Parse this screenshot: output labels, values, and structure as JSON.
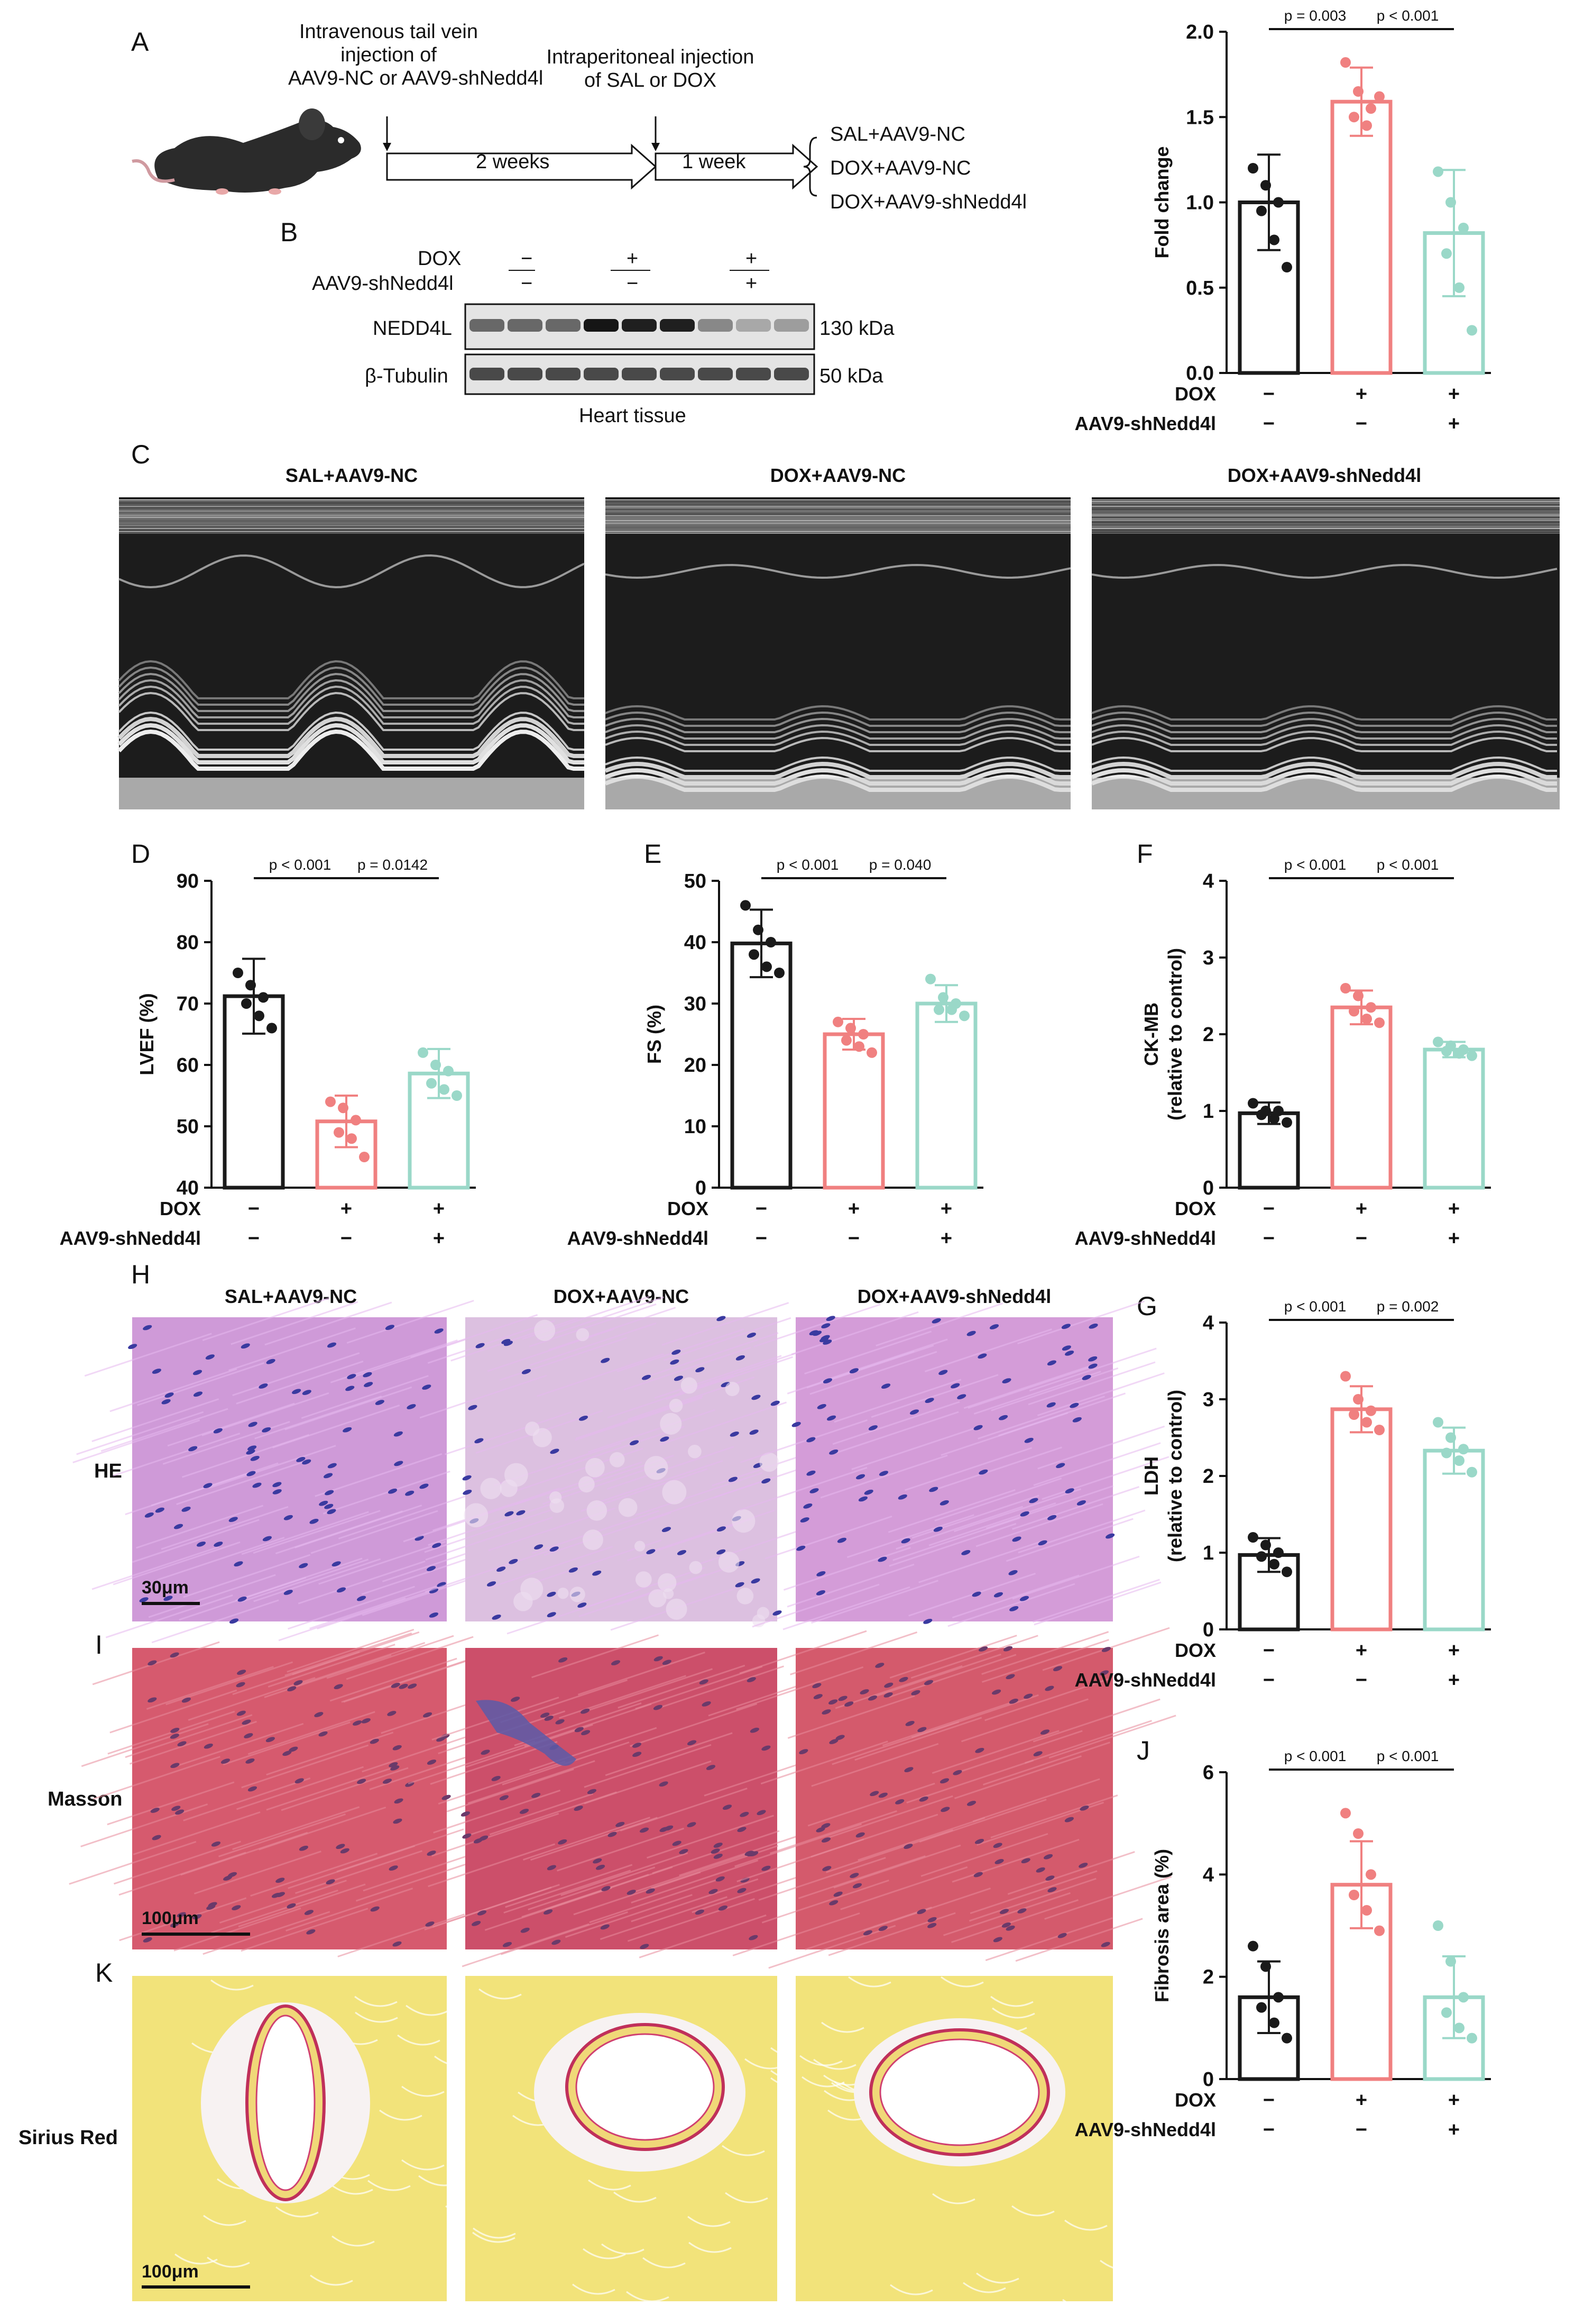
{
  "panel_labels": {
    "A": "A",
    "B": "B",
    "C": "C",
    "D": "D",
    "E": "E",
    "F": "F",
    "G": "G",
    "H": "H",
    "I": "I",
    "J": "J",
    "K": "K"
  },
  "schematic": {
    "injection1": [
      "Intravenous tail vein",
      "injection of",
      "AAV9-NC or AAV9-shNedd4l"
    ],
    "injection2": [
      "Intraperitoneal injection",
      "of SAL or DOX"
    ],
    "arrow1": "2 weeks",
    "arrow2": "1 week",
    "groups": [
      "SAL+AAV9-NC",
      "DOX+AAV9-NC",
      "DOX+AAV9-shNedd4l"
    ]
  },
  "western": {
    "row_labels": [
      "DOX",
      "AAV9-shNedd4l"
    ],
    "signs_dox": [
      "−",
      "+",
      "+"
    ],
    "signs_aav": [
      "−",
      "−",
      "+"
    ],
    "bands": [
      {
        "protein": "NEDD4L",
        "size": "130 kDa",
        "intensity": [
          0.55,
          0.55,
          0.55,
          0.95,
          0.9,
          0.9,
          0.4,
          0.25,
          0.3
        ]
      },
      {
        "protein": "β-Tubulin",
        "size": "50 kDa",
        "intensity": [
          0.7,
          0.7,
          0.7,
          0.7,
          0.7,
          0.7,
          0.7,
          0.7,
          0.7
        ]
      }
    ],
    "caption": "Heart tissue"
  },
  "echo": {
    "titles": [
      "SAL+AAV9-NC",
      "DOX+AAV9-NC",
      "DOX+AAV9-shNedd4l"
    ]
  },
  "histology": {
    "col_titles": [
      "SAL+AAV9-NC",
      "DOX+AAV9-NC",
      "DOX+AAV9-shNedd4l"
    ],
    "rows": [
      "HE",
      "Masson",
      "Sirius Red"
    ],
    "scalebars": [
      "30μm",
      "100μm",
      "100μm"
    ]
  },
  "group_axis": {
    "dox_label": "DOX",
    "aav_label": "AAV9-shNedd4l",
    "dox_signs": [
      "−",
      "+",
      "+"
    ],
    "aav_signs": [
      "−",
      "−",
      "+"
    ]
  },
  "colors": {
    "black": "#1a1a1a",
    "red": "#f08080",
    "teal": "#9ad8c8"
  },
  "chart_data": [
    {
      "id": "B",
      "type": "bar",
      "ylabel": "Fold change",
      "ylim": [
        0,
        2.0
      ],
      "yticks": [
        "0.0",
        "0.5",
        "1.0",
        "1.5",
        "2.0"
      ],
      "values": [
        1.0,
        1.59,
        0.82
      ],
      "errors": [
        0.28,
        0.2,
        0.37
      ],
      "points": [
        [
          1.2,
          1.1,
          1.0,
          0.95,
          0.78,
          0.62
        ],
        [
          1.82,
          1.65,
          1.55,
          1.5,
          1.45,
          1.62
        ],
        [
          1.18,
          1.0,
          0.85,
          0.7,
          0.5,
          0.25
        ]
      ],
      "pvals": [
        "p = 0.003",
        "p < 0.001"
      ]
    },
    {
      "id": "D",
      "type": "bar",
      "ylabel": "LVEF (%)",
      "ylim": [
        40,
        90
      ],
      "yticks": [
        "40",
        "50",
        "60",
        "70",
        "80",
        "90"
      ],
      "values": [
        71.2,
        50.8,
        58.6
      ],
      "errors": [
        6.1,
        4.2,
        4.0
      ],
      "points": [
        [
          75,
          73,
          71,
          70,
          68,
          66
        ],
        [
          54,
          53,
          51,
          49,
          48,
          45
        ],
        [
          62,
          60,
          59,
          57,
          56,
          55
        ]
      ],
      "pvals": [
        "p < 0.001",
        "p = 0.0142"
      ]
    },
    {
      "id": "E",
      "type": "bar",
      "ylabel": "FS (%)",
      "ylim": [
        0,
        50
      ],
      "yticks": [
        "0",
        "10",
        "20",
        "30",
        "40",
        "50"
      ],
      "values": [
        39.8,
        25.0,
        30.0
      ],
      "errors": [
        5.5,
        2.5,
        3.0
      ],
      "points": [
        [
          46,
          42,
          40,
          38,
          36,
          35
        ],
        [
          27,
          26,
          25,
          24,
          23,
          22
        ],
        [
          34,
          31,
          30,
          29,
          29,
          28
        ]
      ],
      "pvals": [
        "p < 0.001",
        "p = 0.040"
      ]
    },
    {
      "id": "F",
      "type": "bar",
      "ylabel": "CK-MB",
      "ylabel2": "(relative to control)",
      "ylim": [
        0,
        4
      ],
      "yticks": [
        "0",
        "1",
        "2",
        "3",
        "4"
      ],
      "values": [
        0.97,
        2.35,
        1.8
      ],
      "errors": [
        0.14,
        0.22,
        0.1
      ],
      "points": [
        [
          1.1,
          1.0,
          1.0,
          0.95,
          0.9,
          0.85
        ],
        [
          2.6,
          2.5,
          2.35,
          2.3,
          2.2,
          2.15
        ],
        [
          1.9,
          1.85,
          1.8,
          1.78,
          1.75,
          1.72
        ]
      ],
      "pvals": [
        "p < 0.001",
        "p < 0.001"
      ]
    },
    {
      "id": "G",
      "type": "bar",
      "ylabel": "LDH",
      "ylabel2": "(relative to control)",
      "ylim": [
        0,
        4
      ],
      "yticks": [
        "0",
        "1",
        "2",
        "3",
        "4"
      ],
      "values": [
        0.97,
        2.87,
        2.33
      ],
      "errors": [
        0.22,
        0.3,
        0.3
      ],
      "points": [
        [
          1.2,
          1.1,
          1.0,
          0.95,
          0.85,
          0.75
        ],
        [
          3.3,
          3.0,
          2.85,
          2.8,
          2.7,
          2.6
        ],
        [
          2.7,
          2.5,
          2.35,
          2.3,
          2.2,
          2.05
        ]
      ],
      "pvals": [
        "p < 0.001",
        "p = 0.002"
      ]
    },
    {
      "id": "J",
      "type": "bar",
      "ylabel": "Fibrosis area (%)",
      "ylim": [
        0,
        6
      ],
      "yticks": [
        "0",
        "2",
        "4",
        "6"
      ],
      "values": [
        1.6,
        3.8,
        1.6
      ],
      "errors": [
        0.7,
        0.85,
        0.8
      ],
      "points": [
        [
          2.6,
          2.2,
          1.6,
          1.4,
          1.1,
          0.8
        ],
        [
          5.2,
          4.8,
          4.0,
          3.6,
          3.3,
          2.9
        ],
        [
          3.0,
          2.3,
          1.6,
          1.3,
          1.0,
          0.8
        ]
      ],
      "pvals": [
        "p < 0.001",
        "p < 0.001"
      ]
    }
  ]
}
